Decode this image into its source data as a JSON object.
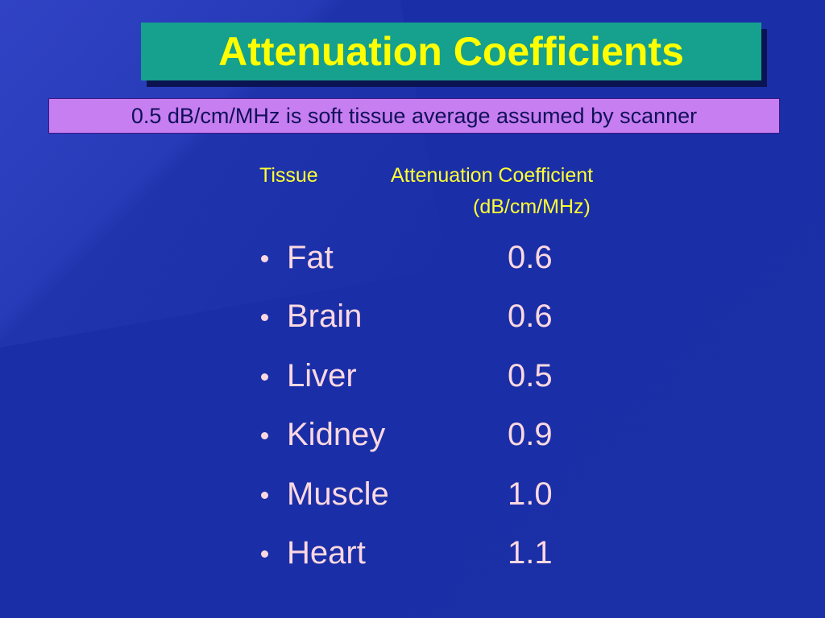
{
  "header": {
    "title": "Attenuation Coefficients",
    "note": "0.5 dB/cm/MHz is soft tissue average assumed by scanner"
  },
  "table": {
    "columns": [
      "Tissue",
      "Attenuation Coefficient",
      "(dB/cm/MHz)"
    ],
    "rows": [
      [
        "Fat",
        "0.6"
      ],
      [
        "Brain",
        "0.6"
      ],
      [
        "Liver",
        "0.5"
      ],
      [
        "Kidney",
        "0.9"
      ],
      [
        "Muscle",
        "1.0"
      ],
      [
        "Heart",
        "1.1"
      ]
    ]
  }
}
